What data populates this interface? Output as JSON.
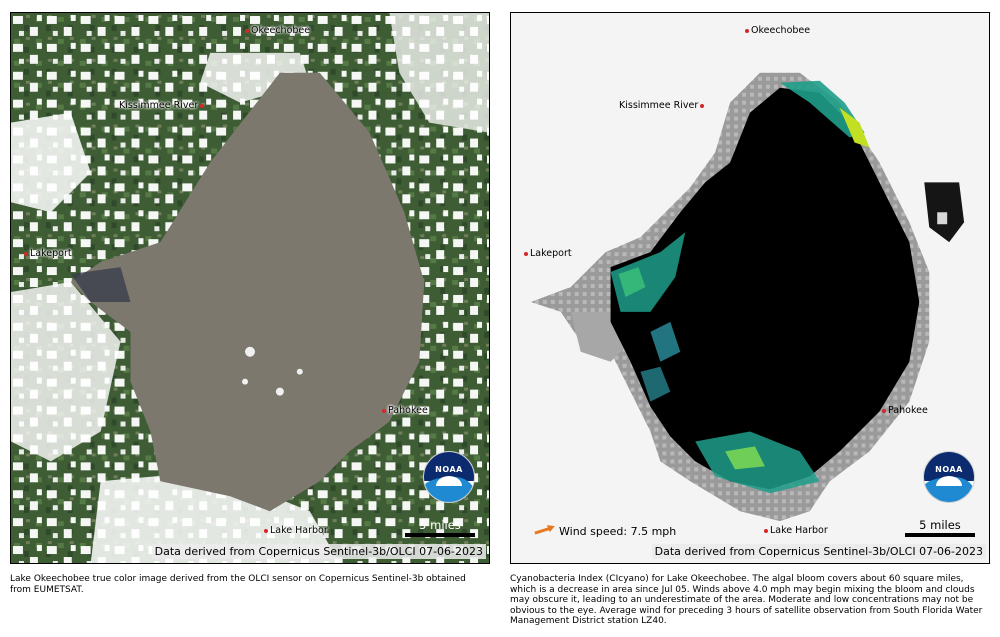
{
  "left_panel": {
    "places": {
      "okeechobee": "Okeechobee",
      "kissimmee": "Kissimmee River",
      "lakeport": "Lakeport",
      "pahokee": "Pahokee",
      "lake_harbor": "Lake Harbor"
    },
    "scale_label": "5 miles",
    "credit": "Data derived from Copernicus Sentinel-3b/OLCI 07-06-2023",
    "logo_text": "NOAA",
    "caption": "Lake Okeechobee true color image derived from the OLCI sensor on Copernicus Sentinel-3b obtained from EUMETSAT."
  },
  "right_panel": {
    "places": {
      "okeechobee": "Okeechobee",
      "kissimmee": "Kissimmee River",
      "lakeport": "Lakeport",
      "pahokee": "Pahokee",
      "lake_harbor": "Lake Harbor"
    },
    "wind_label": "Wind speed: 7.5 mph",
    "scale_label": "5 miles",
    "credit": "Data derived from Copernicus Sentinel-3b/OLCI 07-06-2023",
    "logo_text": "NOAA",
    "caption": "Cyanobacteria Index (CIcyano) for Lake Okeechobee. The algal bloom covers about 60 square miles, which is a decrease in area since Jul 05.  Winds above 4.0 mph may begin mixing the bloom and clouds may obscure it, leading to an underestimate of the area. Moderate and low concentrations may not be obvious to the eye. Average wind for preceding 3 hours of satellite observation from South Florida Water Management District station LZ40."
  },
  "colors": {
    "land": "#3d5a34",
    "lake_true_color": "#7d786e",
    "cloud": "#ffffff",
    "lake_index": "#000000",
    "no_data": "#9a9a9a",
    "bloom_low": "#1f9e89",
    "bloom_high": "#c2df23",
    "wind_arrow": "#e8771e",
    "place_dot": "#d62728"
  }
}
